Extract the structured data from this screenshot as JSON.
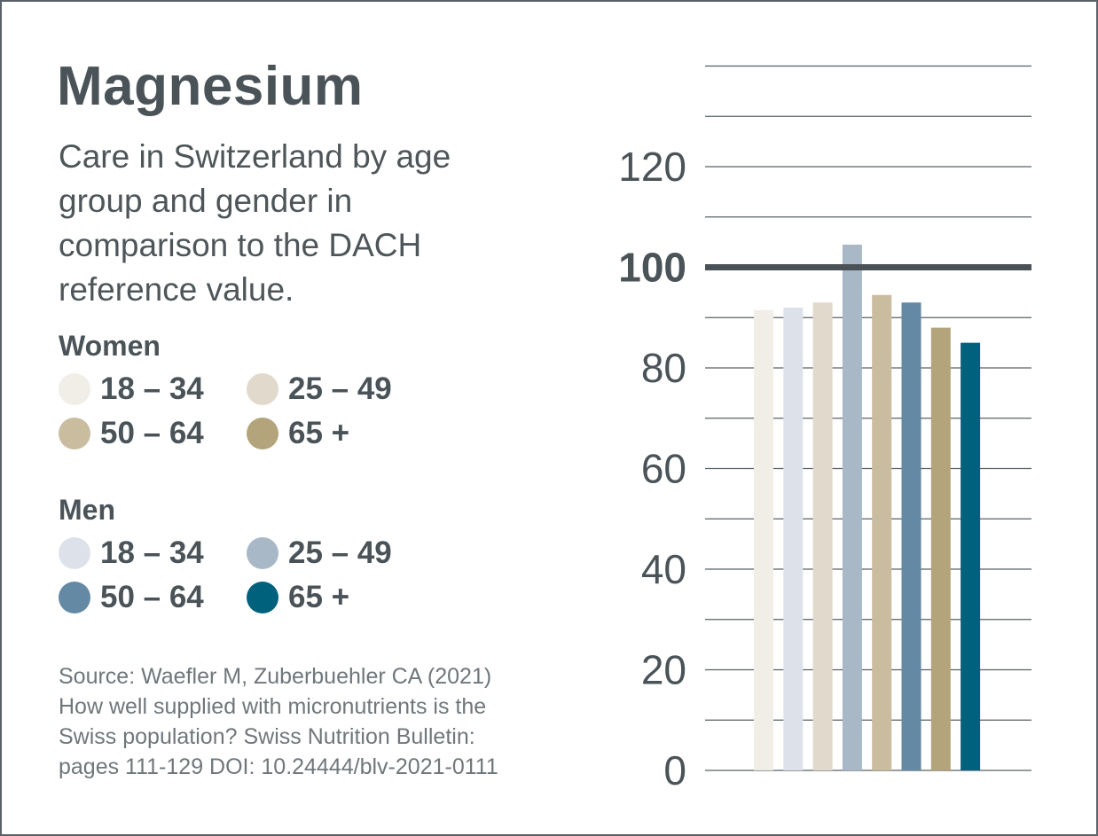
{
  "title": "Magnesium",
  "subtitle": "Care in Switzerland by age group and gender in comparison to the DACH reference value.",
  "legend": {
    "women": {
      "heading": "Women",
      "items": [
        {
          "label": "18 – 34",
          "color": "#f1eee8"
        },
        {
          "label": "25 – 49",
          "color": "#e1d9cc"
        },
        {
          "label": "50 – 64",
          "color": "#c9bc9f"
        },
        {
          "label": "65 +",
          "color": "#b3a47c"
        }
      ]
    },
    "men": {
      "heading": "Men",
      "items": [
        {
          "label": "18 – 34",
          "color": "#dde2ea"
        },
        {
          "label": "25 – 49",
          "color": "#a8b8c7"
        },
        {
          "label": "50 – 64",
          "color": "#6389a5"
        },
        {
          "label": "65 +",
          "color": "#00617d"
        }
      ]
    }
  },
  "source": {
    "lines": [
      "Source: Waefler M, Zuberbuehler CA (2021)",
      "How well supplied with micronutrients is the",
      "Swiss population? Swiss Nutrition Bulletin:",
      "pages 111-129 DOI: 10.24444/blv-2021-0111"
    ]
  },
  "chart_data": {
    "type": "bar",
    "title": "Magnesium",
    "xlabel": "",
    "ylabel": "",
    "ylim": [
      0,
      140
    ],
    "yticks": [
      0,
      20,
      40,
      60,
      80,
      100,
      120
    ],
    "gridline_step": 10,
    "reference_line": {
      "value": 100,
      "label": "100"
    },
    "categories": [
      "Women 18 – 34",
      "Men 18 – 34",
      "Women 25 – 49",
      "Men 25 – 49",
      "Women 50 – 64",
      "Men 50 – 64",
      "Women 65 +",
      "Men 65 +"
    ],
    "values": [
      91.5,
      92,
      93,
      104.5,
      94.5,
      93,
      88,
      85
    ],
    "colors": [
      "#f1eee8",
      "#dde2ea",
      "#e1d9cc",
      "#a8b8c7",
      "#c9bc9f",
      "#6389a5",
      "#b3a47c",
      "#00617d"
    ],
    "grid": true,
    "legend_position": "left"
  }
}
